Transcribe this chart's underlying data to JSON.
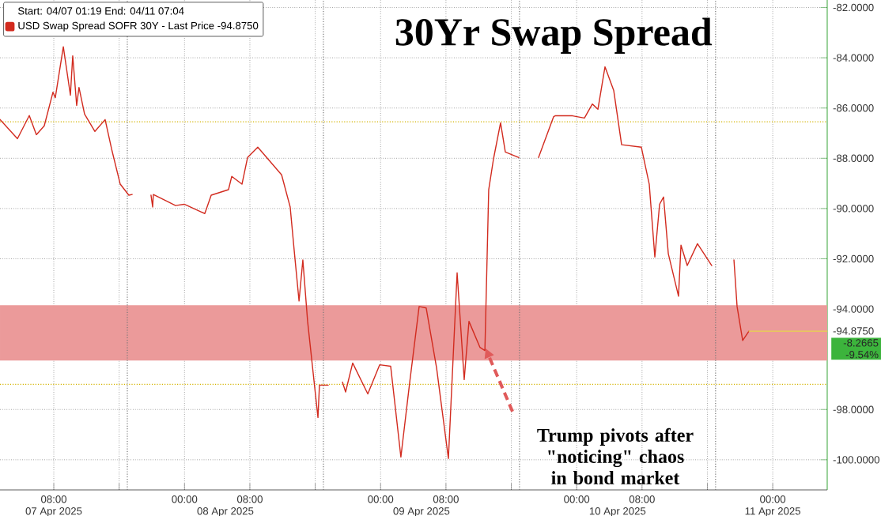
{
  "chart_data": {
    "type": "line",
    "title": "30Yr Swap Spread",
    "legend_title": "Start: 04/07 01:19 End: 04/11 07:04",
    "legend": "top left",
    "grid": true,
    "xlim": [
      "2025-04-07T01:25",
      "2025-04-11T06:40"
    ],
    "xticks": [
      {
        "value": "2025-04-07T08:00",
        "label": "08:00"
      },
      {
        "value": "2025-04-07T16:00",
        "label": null
      },
      {
        "value": "2025-04-08T00:00",
        "label": "00:00"
      },
      {
        "value": "2025-04-08T08:00",
        "label": "08:00"
      },
      {
        "value": "2025-04-08T16:00",
        "label": null
      },
      {
        "value": "2025-04-09T00:00",
        "label": "00:00"
      },
      {
        "value": "2025-04-09T08:00",
        "label": "08:00"
      },
      {
        "value": "2025-04-09T16:00",
        "label": null
      },
      {
        "value": "2025-04-10T00:00",
        "label": "00:00"
      },
      {
        "value": "2025-04-10T08:00",
        "label": "08:00"
      },
      {
        "value": "2025-04-10T16:00",
        "label": null
      },
      {
        "value": "2025-04-11T00:00",
        "label": "00:00"
      }
    ],
    "x2lim": [
      "2025-04-07T01:25",
      "2025-04-11T06:40"
    ],
    "x2ticks": [
      {
        "value": "2025-04-07T08:00",
        "label": "07 Apr 2025"
      },
      {
        "value": "2025-04-08T05:00",
        "label": "08 Apr 2025"
      },
      {
        "value": "2025-04-09T05:00",
        "label": "09 Apr 2025"
      },
      {
        "value": "2025-04-10T05:00",
        "label": "10 Apr 2025"
      },
      {
        "value": "2025-04-11T00:00",
        "label": "11 Apr 2025"
      }
    ],
    "ylim": [
      -101.2,
      -81.7
    ],
    "yticks": [
      {
        "value": -82,
        "label": "-82.0000"
      },
      {
        "value": -84,
        "label": "-84.0000"
      },
      {
        "value": -86,
        "label": "-86.0000"
      },
      {
        "value": -88,
        "label": "-88.0000"
      },
      {
        "value": -90,
        "label": "-90.0000"
      },
      {
        "value": -92,
        "label": "-92.0000"
      },
      {
        "value": -94,
        "label": "-94.0000"
      },
      {
        "value": -94.875,
        "label": "-94.8750"
      },
      {
        "value": -96,
        "label": null
      },
      {
        "value": -98,
        "label": "-98.0000"
      },
      {
        "value": -100,
        "label": "-100.0000"
      }
    ],
    "x": [
      "2025-04-07T01:25",
      "2025-04-07T03:33",
      "2025-04-07T05:00",
      "2025-04-07T05:52",
      "2025-04-07T06:50",
      "2025-04-07T07:54",
      "2025-04-07T08:11",
      "2025-04-07T09:10",
      "2025-04-07T10:02",
      "2025-04-07T10:19",
      "2025-04-07T10:48",
      "2025-04-07T11:05",
      "2025-04-07T11:46",
      "2025-04-07T13:02",
      "2025-04-07T14:17",
      "2025-04-07T15:04",
      "2025-04-07T16:08",
      "2025-04-07T17:11",
      "2025-04-07T17:35",
      "2025-04-07T18:45",
      "2025-04-07T19:54",
      "2025-04-07T20:06",
      "2025-04-07T20:11",
      "2025-04-07T22:54",
      "2025-04-07T23:58",
      "2025-04-08T02:29",
      "2025-04-08T03:16",
      "2025-04-08T05:23",
      "2025-04-08T05:47",
      "2025-04-08T07:02",
      "2025-04-08T07:43",
      "2025-04-08T08:58",
      "2025-04-08T11:53",
      "2025-04-08T12:56",
      "2025-04-08T13:26",
      "2025-04-08T14:01",
      "2025-04-08T14:29",
      "2025-04-08T15:04",
      "2025-04-08T16:20",
      "2025-04-08T16:31",
      "2025-04-08T17:35",
      "2025-04-08T18:25",
      "2025-04-08T19:20",
      "2025-04-08T19:43",
      "2025-04-08T20:35",
      "2025-04-08T22:26",
      "2025-04-08T23:53",
      "2025-04-09T01:14",
      "2025-04-09T02:29",
      "2025-04-09T03:34",
      "2025-04-09T04:43",
      "2025-04-09T05:35",
      "2025-04-09T06:51",
      "2025-04-09T08:18",
      "2025-04-09T09:22",
      "2025-04-09T10:14",
      "2025-04-09T10:49",
      "2025-04-09T12:10",
      "2025-04-09T12:46",
      "2025-04-09T13:14",
      "2025-04-09T13:49",
      "2025-04-09T14:41",
      "2025-04-09T15:16",
      "2025-04-09T16:55",
      "2025-04-09T18:05",
      "2025-04-09T19:20",
      "2025-04-09T21:11",
      "2025-04-09T21:22",
      "2025-04-09T23:30",
      "2025-04-10T00:57",
      "2025-04-10T01:55",
      "2025-04-10T02:36",
      "2025-04-10T03:28",
      "2025-04-10T04:32",
      "2025-04-10T05:30",
      "2025-04-10T07:55",
      "2025-04-10T08:53",
      "2025-04-10T09:34",
      "2025-04-10T10:09",
      "2025-04-10T10:38",
      "2025-04-10T11:13",
      "2025-04-10T12:28",
      "2025-04-10T12:46",
      "2025-04-10T13:32",
      "2025-04-10T14:47",
      "2025-04-10T16:32",
      "2025-04-10T18:00",
      "2025-04-10T19:15",
      "2025-04-10T19:38",
      "2025-04-10T20:19",
      "2025-04-10T21:05"
    ],
    "series": [
      {
        "name": "USD Swap Spread SOFR 30Y - Last Price -94.8750",
        "color": "#d22b1f",
        "values": [
          -86.46,
          -87.22,
          -86.3,
          -87.06,
          -86.71,
          -85.37,
          -85.59,
          -83.56,
          -85.49,
          -83.92,
          -85.9,
          -85.18,
          -86.24,
          -86.93,
          -86.46,
          -87.62,
          -89.03,
          -89.47,
          -89.44,
          null,
          -89.47,
          -89.94,
          -89.44,
          -89.88,
          -89.83,
          -90.2,
          -89.47,
          -89.25,
          -88.72,
          -89.03,
          -87.97,
          -87.56,
          -88.66,
          -89.94,
          -91.7,
          -93.68,
          -92.05,
          -94.49,
          -98.32,
          -97.03,
          -97.03,
          null,
          -96.91,
          -97.3,
          -96.15,
          -97.38,
          -96.22,
          -96.28,
          -99.89,
          -96.91,
          -93.9,
          -93.96,
          -96.34,
          -99.95,
          -92.56,
          -96.81,
          -94.49,
          -95.53,
          -95.65,
          -89.25,
          -88.03,
          -86.59,
          -87.75,
          -87.97,
          null,
          -87.97,
          -86.34,
          -86.31,
          -86.31,
          -86.4,
          -85.84,
          -86.05,
          -84.36,
          -85.3,
          -87.46,
          -87.56,
          -89.03,
          -91.93,
          -89.83,
          -89.54,
          -91.8,
          -93.49,
          -91.46,
          -92.27,
          -91.4,
          -92.27,
          null,
          -92.05,
          -93.9,
          -95.25,
          -94.88
        ]
      },
      {
        "type": "line",
        "color": "#e8d44d",
        "x": [
          "2025-04-10T21:05",
          "2025-04-11T06:40"
        ],
        "values": [
          -94.88,
          -94.88
        ]
      }
    ],
    "ref_lines": [
      {
        "axis": "y",
        "value": -86.55,
        "color": "#d4b400",
        "line_style": "dotted"
      },
      {
        "axis": "y",
        "value": -97.0,
        "color": "#d4b400",
        "line_style": "dotted"
      },
      {
        "axis": "x",
        "value": "2025-04-07T17:00",
        "color": "#777777",
        "line_style": "dotted"
      },
      {
        "axis": "x",
        "value": "2025-04-08T17:00",
        "color": "#777777",
        "line_style": "dotted"
      },
      {
        "axis": "x",
        "value": "2025-04-09T17:00",
        "color": "#777777",
        "line_style": "dotted"
      },
      {
        "axis": "x",
        "value": "2025-04-10T17:00",
        "color": "#777777",
        "line_style": "dotted"
      }
    ],
    "bands": [
      {
        "axis": "y",
        "from": -93.85,
        "to": -96.05,
        "color": "#eb9a9a"
      }
    ],
    "annotations": [
      "Trump pivots after \"noticing\" chaos in bond market",
      "-8.2665",
      "-9.54%"
    ]
  }
}
